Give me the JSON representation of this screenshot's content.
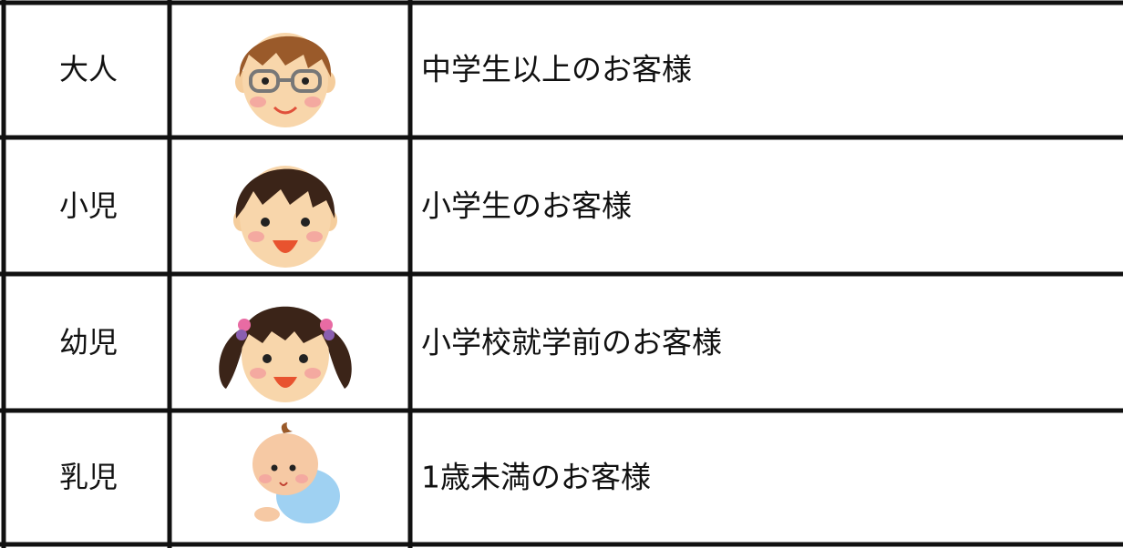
{
  "table": {
    "rows": [
      [
        "大人",
        "中学生以上のお客様"
      ],
      [
        "小児",
        "小学生のお客様"
      ],
      [
        "幼児",
        "小学校就学前のお客様"
      ],
      [
        "乳児",
        "1歳未満のお客様"
      ]
    ]
  }
}
